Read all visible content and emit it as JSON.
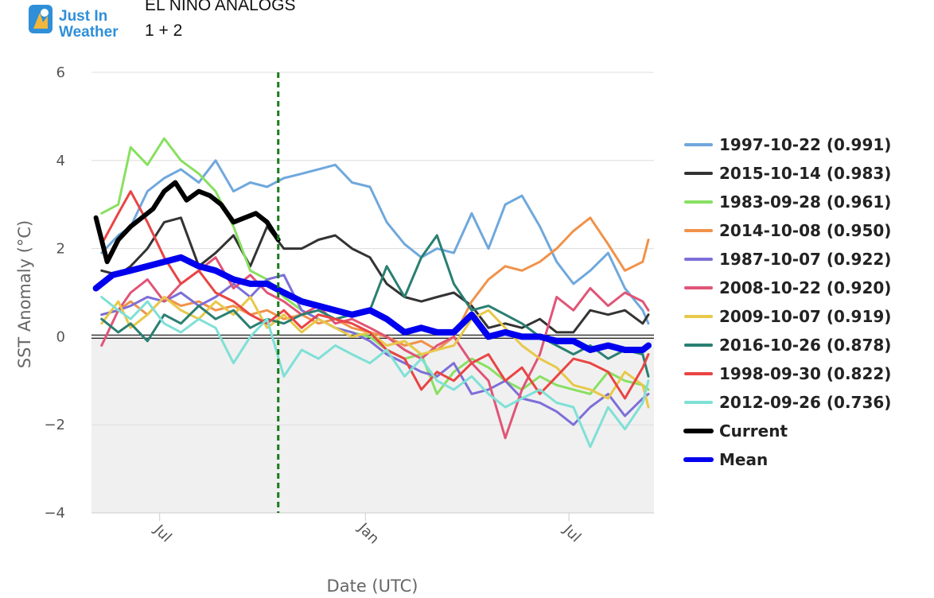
{
  "header": {
    "logo_line1": "Just In",
    "logo_line2": "Weather",
    "title": "EL NINO ANALOGS",
    "subtitle": "1 + 2"
  },
  "colors": {
    "mean": "#0000ee",
    "current": "#000000",
    "marker_line": "#1a7a1a",
    "below_zero_fill": "#f0f0f0",
    "grid": "#dddddd"
  },
  "chart_data": {
    "type": "line",
    "xlabel": "Date (UTC)",
    "ylabel": "SST Anomaly (°C)",
    "ylim": [
      -4,
      6
    ],
    "yticks": [
      6,
      4,
      2,
      0,
      -2,
      -4
    ],
    "ytick_labels": [
      "6",
      "4",
      "2",
      "0",
      "−2",
      "−4"
    ],
    "xlim": [
      "2023-05-01",
      "2024-09-15"
    ],
    "xticks": [
      {
        "date": "2023-07-01",
        "label": "Jul"
      },
      {
        "date": "2024-01-01",
        "label": "Jan"
      },
      {
        "date": "2024-07-01",
        "label": "Jul"
      }
    ],
    "marker_date": "2023-10-15",
    "legend_position": "right",
    "grid": true,
    "series": [
      {
        "name": "1997-10-22 (0.991)",
        "color": "#6fa8dc",
        "width": 3,
        "x": [
          "2023-05-10",
          "2023-05-25",
          "2023-06-05",
          "2023-06-20",
          "2023-07-05",
          "2023-07-20",
          "2023-08-05",
          "2023-08-20",
          "2023-09-05",
          "2023-09-20",
          "2023-10-05",
          "2023-10-20",
          "2023-11-05",
          "2023-11-20",
          "2023-12-05",
          "2023-12-20",
          "2024-01-05",
          "2024-01-20",
          "2024-02-05",
          "2024-02-20",
          "2024-03-05",
          "2024-03-20",
          "2024-04-05",
          "2024-04-20",
          "2024-05-05",
          "2024-05-20",
          "2024-06-05",
          "2024-06-20",
          "2024-07-05",
          "2024-07-20",
          "2024-08-05",
          "2024-08-20",
          "2024-09-05",
          "2024-09-10"
        ],
        "y": [
          1.9,
          2.3,
          2.5,
          3.3,
          3.6,
          3.8,
          3.5,
          4.0,
          3.3,
          3.5,
          3.4,
          3.6,
          3.7,
          3.8,
          3.9,
          3.5,
          3.4,
          2.6,
          2.1,
          1.8,
          2.0,
          1.9,
          2.8,
          2.0,
          3.0,
          3.2,
          2.5,
          1.7,
          1.2,
          1.5,
          1.9,
          1.1,
          0.6,
          0.3
        ]
      },
      {
        "name": "2015-10-14 (0.983)",
        "color": "#333333",
        "width": 3,
        "x": [
          "2023-05-10",
          "2023-05-25",
          "2023-06-05",
          "2023-06-20",
          "2023-07-05",
          "2023-07-20",
          "2023-08-05",
          "2023-08-20",
          "2023-09-05",
          "2023-09-20",
          "2023-10-05",
          "2023-10-20",
          "2023-11-05",
          "2023-11-20",
          "2023-12-05",
          "2023-12-20",
          "2024-01-05",
          "2024-01-20",
          "2024-02-05",
          "2024-02-20",
          "2024-03-05",
          "2024-03-20",
          "2024-04-05",
          "2024-04-20",
          "2024-05-05",
          "2024-05-20",
          "2024-06-05",
          "2024-06-20",
          "2024-07-05",
          "2024-07-20",
          "2024-08-05",
          "2024-08-20",
          "2024-09-05",
          "2024-09-10"
        ],
        "y": [
          1.5,
          1.4,
          1.6,
          2.0,
          2.6,
          2.7,
          1.6,
          1.9,
          2.3,
          1.6,
          2.5,
          2.0,
          2.0,
          2.2,
          2.3,
          2.0,
          1.8,
          1.2,
          0.9,
          0.8,
          0.9,
          1.0,
          0.7,
          0.2,
          0.3,
          0.2,
          0.4,
          0.1,
          0.1,
          0.6,
          0.5,
          0.6,
          0.3,
          0.5
        ]
      },
      {
        "name": "1983-09-28 (0.961)",
        "color": "#88e060",
        "width": 3,
        "x": [
          "2023-05-10",
          "2023-05-25",
          "2023-06-05",
          "2023-06-20",
          "2023-07-05",
          "2023-07-20",
          "2023-08-05",
          "2023-08-20",
          "2023-09-05",
          "2023-09-20",
          "2023-10-05",
          "2023-10-20",
          "2023-11-05",
          "2023-11-20",
          "2023-12-05",
          "2023-12-20",
          "2024-01-05",
          "2024-01-20",
          "2024-02-05",
          "2024-02-20",
          "2024-03-05",
          "2024-03-20",
          "2024-04-05",
          "2024-04-20",
          "2024-05-05",
          "2024-05-20",
          "2024-06-05",
          "2024-06-20",
          "2024-07-05",
          "2024-07-20",
          "2024-08-05",
          "2024-08-20",
          "2024-09-05",
          "2024-09-10"
        ],
        "y": [
          2.8,
          3.0,
          4.3,
          3.9,
          4.5,
          4.0,
          3.7,
          3.3,
          2.5,
          1.5,
          1.3,
          0.9,
          0.6,
          0.4,
          0.2,
          0.1,
          0.0,
          -0.3,
          -0.5,
          -0.4,
          -1.3,
          -0.8,
          -0.5,
          -0.7,
          -1.0,
          -1.2,
          -0.9,
          -1.1,
          -1.2,
          -1.3,
          -0.8,
          -1.0,
          -1.1,
          -1.2
        ]
      },
      {
        "name": "2014-10-08 (0.950)",
        "color": "#f0924a",
        "width": 3,
        "x": [
          "2023-05-10",
          "2023-05-25",
          "2023-06-05",
          "2023-06-20",
          "2023-07-05",
          "2023-07-20",
          "2023-08-05",
          "2023-08-20",
          "2023-09-05",
          "2023-09-20",
          "2023-10-05",
          "2023-10-20",
          "2023-11-05",
          "2023-11-20",
          "2023-12-05",
          "2023-12-20",
          "2024-01-05",
          "2024-01-20",
          "2024-02-05",
          "2024-02-20",
          "2024-03-05",
          "2024-03-20",
          "2024-04-05",
          "2024-04-20",
          "2024-05-05",
          "2024-05-20",
          "2024-06-05",
          "2024-06-20",
          "2024-07-05",
          "2024-07-20",
          "2024-08-05",
          "2024-08-20",
          "2024-09-05",
          "2024-09-10"
        ],
        "y": [
          0.5,
          0.6,
          0.8,
          0.5,
          0.9,
          0.7,
          0.8,
          0.6,
          0.7,
          0.5,
          0.6,
          0.4,
          0.5,
          0.3,
          0.4,
          0.2,
          0.1,
          0.0,
          -0.2,
          -0.1,
          -0.3,
          0.0,
          0.8,
          1.3,
          1.6,
          1.5,
          1.7,
          2.0,
          2.4,
          2.7,
          2.1,
          1.5,
          1.7,
          2.2
        ]
      },
      {
        "name": "1987-10-07 (0.922)",
        "color": "#7d6fd8",
        "width": 3,
        "x": [
          "2023-05-10",
          "2023-05-25",
          "2023-06-05",
          "2023-06-20",
          "2023-07-05",
          "2023-07-20",
          "2023-08-05",
          "2023-08-20",
          "2023-09-05",
          "2023-09-20",
          "2023-10-05",
          "2023-10-20",
          "2023-11-05",
          "2023-11-20",
          "2023-12-05",
          "2023-12-20",
          "2024-01-05",
          "2024-01-20",
          "2024-02-05",
          "2024-02-20",
          "2024-03-05",
          "2024-03-20",
          "2024-04-05",
          "2024-04-20",
          "2024-05-05",
          "2024-05-20",
          "2024-06-05",
          "2024-06-20",
          "2024-07-05",
          "2024-07-20",
          "2024-08-05",
          "2024-08-20",
          "2024-09-05",
          "2024-09-10"
        ],
        "y": [
          0.5,
          0.6,
          0.7,
          0.9,
          0.8,
          1.0,
          0.7,
          0.9,
          1.2,
          0.9,
          1.3,
          1.4,
          0.6,
          0.4,
          0.2,
          0.1,
          -0.1,
          -0.4,
          -0.6,
          -0.8,
          -0.9,
          -0.6,
          -1.3,
          -1.2,
          -1.0,
          -1.4,
          -1.5,
          -1.7,
          -2.0,
          -1.6,
          -1.3,
          -1.8,
          -1.4,
          -1.3
        ]
      },
      {
        "name": "2008-10-22 (0.920)",
        "color": "#e05577",
        "width": 3,
        "x": [
          "2023-05-10",
          "2023-05-25",
          "2023-06-05",
          "2023-06-20",
          "2023-07-05",
          "2023-07-20",
          "2023-08-05",
          "2023-08-20",
          "2023-09-05",
          "2023-09-20",
          "2023-10-05",
          "2023-10-20",
          "2023-11-05",
          "2023-11-20",
          "2023-12-05",
          "2023-12-20",
          "2024-01-05",
          "2024-01-20",
          "2024-02-05",
          "2024-02-20",
          "2024-03-05",
          "2024-03-20",
          "2024-04-05",
          "2024-04-20",
          "2024-05-05",
          "2024-05-20",
          "2024-06-05",
          "2024-06-20",
          "2024-07-05",
          "2024-07-20",
          "2024-08-05",
          "2024-08-20",
          "2024-09-05",
          "2024-09-10"
        ],
        "y": [
          -0.2,
          0.6,
          1.0,
          1.3,
          0.8,
          1.2,
          1.5,
          1.8,
          1.1,
          1.4,
          1.0,
          0.8,
          0.5,
          0.7,
          0.3,
          0.4,
          0.2,
          0.0,
          -0.3,
          -0.5,
          -0.2,
          0.0,
          -0.6,
          -1.0,
          -2.3,
          -1.2,
          -0.4,
          0.9,
          0.6,
          1.1,
          0.7,
          1.0,
          0.8,
          0.6
        ]
      },
      {
        "name": "2009-10-07 (0.919)",
        "color": "#e8c84a",
        "width": 3,
        "x": [
          "2023-05-10",
          "2023-05-25",
          "2023-06-05",
          "2023-06-20",
          "2023-07-05",
          "2023-07-20",
          "2023-08-05",
          "2023-08-20",
          "2023-09-05",
          "2023-09-20",
          "2023-10-05",
          "2023-10-20",
          "2023-11-05",
          "2023-11-20",
          "2023-12-05",
          "2023-12-20",
          "2024-01-05",
          "2024-01-20",
          "2024-02-05",
          "2024-02-20",
          "2024-03-05",
          "2024-03-20",
          "2024-04-05",
          "2024-04-20",
          "2024-05-05",
          "2024-05-20",
          "2024-06-05",
          "2024-06-20",
          "2024-07-05",
          "2024-07-20",
          "2024-08-05",
          "2024-08-20",
          "2024-09-05",
          "2024-09-10"
        ],
        "y": [
          0.3,
          0.8,
          0.2,
          0.5,
          0.9,
          0.6,
          0.4,
          0.8,
          0.5,
          0.9,
          0.2,
          0.5,
          0.1,
          0.4,
          0.2,
          0.0,
          0.1,
          -0.2,
          -0.1,
          -0.4,
          -0.3,
          -0.2,
          0.4,
          0.6,
          0.2,
          -0.2,
          -0.5,
          -0.7,
          -1.1,
          -1.2,
          -1.4,
          -0.8,
          -1.1,
          -1.6
        ]
      },
      {
        "name": "2016-10-26 (0.878)",
        "color": "#2a7f72",
        "width": 3,
        "x": [
          "2023-05-10",
          "2023-05-25",
          "2023-06-05",
          "2023-06-20",
          "2023-07-05",
          "2023-07-20",
          "2023-08-05",
          "2023-08-20",
          "2023-09-05",
          "2023-09-20",
          "2023-10-05",
          "2023-10-20",
          "2023-11-05",
          "2023-11-20",
          "2023-12-05",
          "2023-12-20",
          "2024-01-05",
          "2024-01-20",
          "2024-02-05",
          "2024-02-20",
          "2024-03-05",
          "2024-03-20",
          "2024-04-05",
          "2024-04-20",
          "2024-05-05",
          "2024-05-20",
          "2024-06-05",
          "2024-06-20",
          "2024-07-05",
          "2024-07-20",
          "2024-08-05",
          "2024-08-20",
          "2024-09-05",
          "2024-09-10"
        ],
        "y": [
          0.4,
          0.1,
          0.3,
          -0.1,
          0.5,
          0.3,
          0.7,
          0.4,
          0.6,
          0.2,
          0.4,
          0.3,
          0.5,
          0.6,
          0.4,
          0.5,
          0.6,
          1.6,
          0.9,
          1.8,
          2.3,
          1.2,
          0.6,
          0.7,
          0.5,
          0.3,
          0.0,
          -0.2,
          -0.4,
          -0.2,
          -0.5,
          -0.3,
          -0.4,
          -0.9
        ]
      },
      {
        "name": "1998-09-30 (0.822)",
        "color": "#ea4444",
        "width": 3,
        "x": [
          "2023-05-10",
          "2023-05-25",
          "2023-06-05",
          "2023-06-20",
          "2023-07-05",
          "2023-07-20",
          "2023-08-05",
          "2023-08-20",
          "2023-09-05",
          "2023-09-20",
          "2023-10-05",
          "2023-10-20",
          "2023-11-05",
          "2023-11-20",
          "2023-12-05",
          "2023-12-20",
          "2024-01-05",
          "2024-01-20",
          "2024-02-05",
          "2024-02-20",
          "2024-03-05",
          "2024-03-20",
          "2024-04-05",
          "2024-04-20",
          "2024-05-05",
          "2024-05-20",
          "2024-06-05",
          "2024-06-20",
          "2024-07-05",
          "2024-07-20",
          "2024-08-05",
          "2024-08-20",
          "2024-09-05",
          "2024-09-10"
        ],
        "y": [
          2.1,
          2.8,
          3.3,
          2.6,
          1.8,
          1.2,
          1.5,
          1.0,
          0.8,
          0.5,
          0.3,
          0.6,
          0.2,
          0.5,
          0.4,
          0.3,
          0.1,
          -0.3,
          -0.5,
          -1.2,
          -0.8,
          -1.0,
          -0.6,
          -0.4,
          -1.0,
          -0.7,
          -1.3,
          -0.9,
          -0.5,
          -0.6,
          -0.8,
          -1.4,
          -0.7,
          -0.4
        ]
      },
      {
        "name": "2012-09-26 (0.736)",
        "color": "#7fe0d6",
        "width": 3,
        "x": [
          "2023-05-10",
          "2023-05-25",
          "2023-06-05",
          "2023-06-20",
          "2023-07-05",
          "2023-07-20",
          "2023-08-05",
          "2023-08-20",
          "2023-09-05",
          "2023-09-20",
          "2023-10-05",
          "2023-10-20",
          "2023-11-05",
          "2023-11-20",
          "2023-12-05",
          "2023-12-20",
          "2024-01-05",
          "2024-01-20",
          "2024-02-05",
          "2024-02-20",
          "2024-03-05",
          "2024-03-20",
          "2024-04-05",
          "2024-04-20",
          "2024-05-05",
          "2024-05-20",
          "2024-06-05",
          "2024-06-20",
          "2024-07-05",
          "2024-07-20",
          "2024-08-05",
          "2024-08-20",
          "2024-09-05",
          "2024-09-10"
        ],
        "y": [
          0.9,
          0.6,
          0.4,
          0.8,
          0.3,
          0.1,
          0.4,
          0.2,
          -0.6,
          0.0,
          0.4,
          -0.9,
          -0.3,
          -0.5,
          -0.2,
          -0.4,
          -0.6,
          -0.3,
          -0.9,
          -0.5,
          -1.0,
          -1.2,
          -0.9,
          -1.3,
          -1.6,
          -1.4,
          -1.2,
          -1.5,
          -1.6,
          -2.5,
          -1.6,
          -2.1,
          -1.5,
          -1.0
        ]
      },
      {
        "name": "Current",
        "color": "#000000",
        "width": 6,
        "x": [
          "2023-05-05",
          "2023-05-15",
          "2023-05-25",
          "2023-06-05",
          "2023-06-15",
          "2023-06-25",
          "2023-07-05",
          "2023-07-15",
          "2023-07-25",
          "2023-08-05",
          "2023-08-15",
          "2023-08-25",
          "2023-09-05",
          "2023-09-15",
          "2023-09-25",
          "2023-10-05",
          "2023-10-15"
        ],
        "y": [
          2.7,
          1.7,
          2.2,
          2.5,
          2.7,
          2.9,
          3.3,
          3.5,
          3.1,
          3.3,
          3.2,
          3.0,
          2.6,
          2.7,
          2.8,
          2.6,
          2.2
        ]
      },
      {
        "name": "Mean",
        "color": "#0000ee",
        "width": 8,
        "x": [
          "2023-05-05",
          "2023-05-20",
          "2023-06-05",
          "2023-06-20",
          "2023-07-05",
          "2023-07-20",
          "2023-08-05",
          "2023-08-20",
          "2023-09-05",
          "2023-09-20",
          "2023-10-05",
          "2023-10-20",
          "2023-11-05",
          "2023-11-20",
          "2023-12-05",
          "2023-12-20",
          "2024-01-05",
          "2024-01-20",
          "2024-02-05",
          "2024-02-20",
          "2024-03-05",
          "2024-03-20",
          "2024-04-05",
          "2024-04-20",
          "2024-05-05",
          "2024-05-20",
          "2024-06-05",
          "2024-06-20",
          "2024-07-05",
          "2024-07-20",
          "2024-08-05",
          "2024-08-20",
          "2024-09-05",
          "2024-09-10"
        ],
        "y": [
          1.1,
          1.4,
          1.5,
          1.6,
          1.7,
          1.8,
          1.6,
          1.5,
          1.3,
          1.2,
          1.2,
          1.0,
          0.8,
          0.7,
          0.6,
          0.5,
          0.6,
          0.4,
          0.1,
          0.2,
          0.1,
          0.1,
          0.5,
          0.0,
          0.1,
          0.0,
          0.0,
          -0.1,
          -0.1,
          -0.3,
          -0.2,
          -0.3,
          -0.3,
          -0.2
        ]
      }
    ]
  }
}
